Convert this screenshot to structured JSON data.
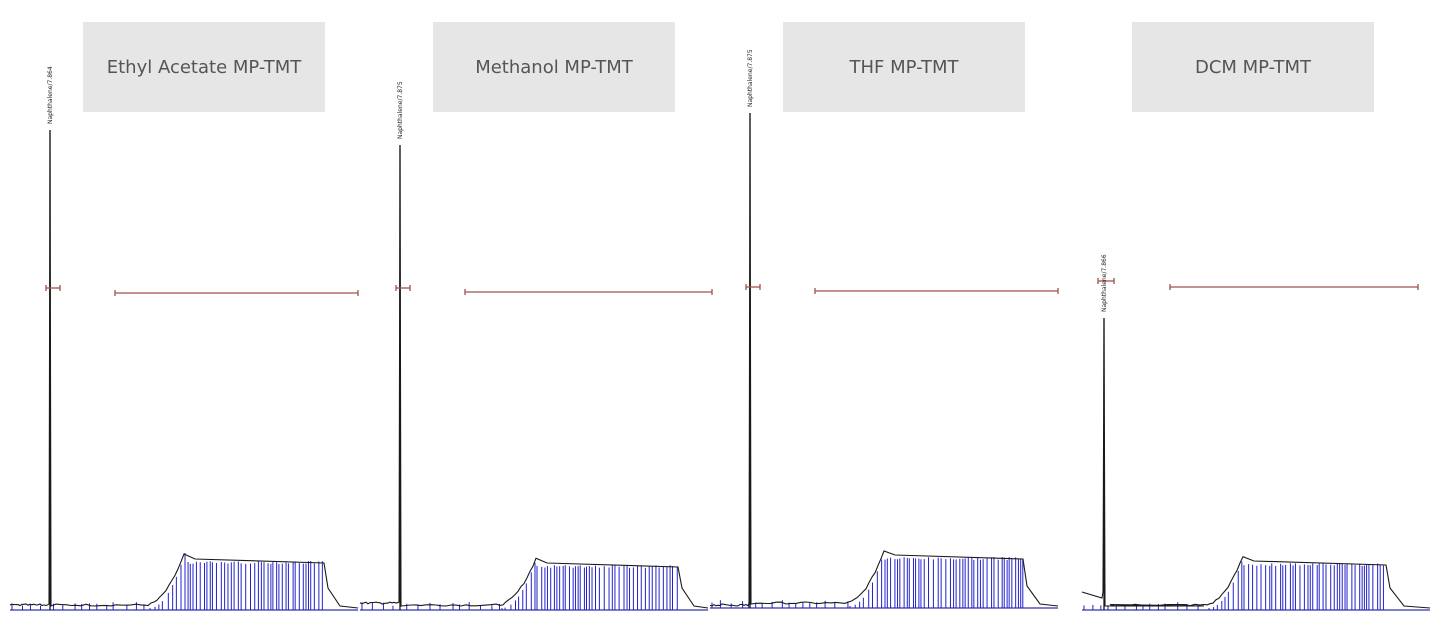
{
  "chart_data": [
    {
      "type": "line",
      "title": "Ethyl Acetate MP-TMT",
      "peak_label": "Naphthalene/7.864",
      "peak_rt": 7.864,
      "colors": {
        "trace": "#1a1a1a",
        "integration": "#2222cc",
        "baseline": "#3333aa",
        "error_bar": "#a0524f"
      }
    },
    {
      "type": "line",
      "title": "Methanol MP-TMT",
      "peak_label": "Naphthalene/7.875",
      "peak_rt": 7.875,
      "colors": {
        "trace": "#1a1a1a",
        "integration": "#2222cc",
        "baseline": "#3333aa",
        "error_bar": "#a0524f"
      }
    },
    {
      "type": "line",
      "title": "THF MP-TMT",
      "peak_label": "Naphthalene/7.875",
      "peak_rt": 7.875,
      "colors": {
        "trace": "#1a1a1a",
        "integration": "#2222cc",
        "baseline": "#3333aa",
        "error_bar": "#a0524f"
      }
    },
    {
      "type": "line",
      "title": "DCM MP-TMT",
      "peak_label": "Naphthalene/7.866",
      "peak_rt": 7.866,
      "colors": {
        "trace": "#1a1a1a",
        "integration": "#2222cc",
        "baseline": "#3333aa",
        "error_bar": "#a0524f"
      }
    }
  ]
}
